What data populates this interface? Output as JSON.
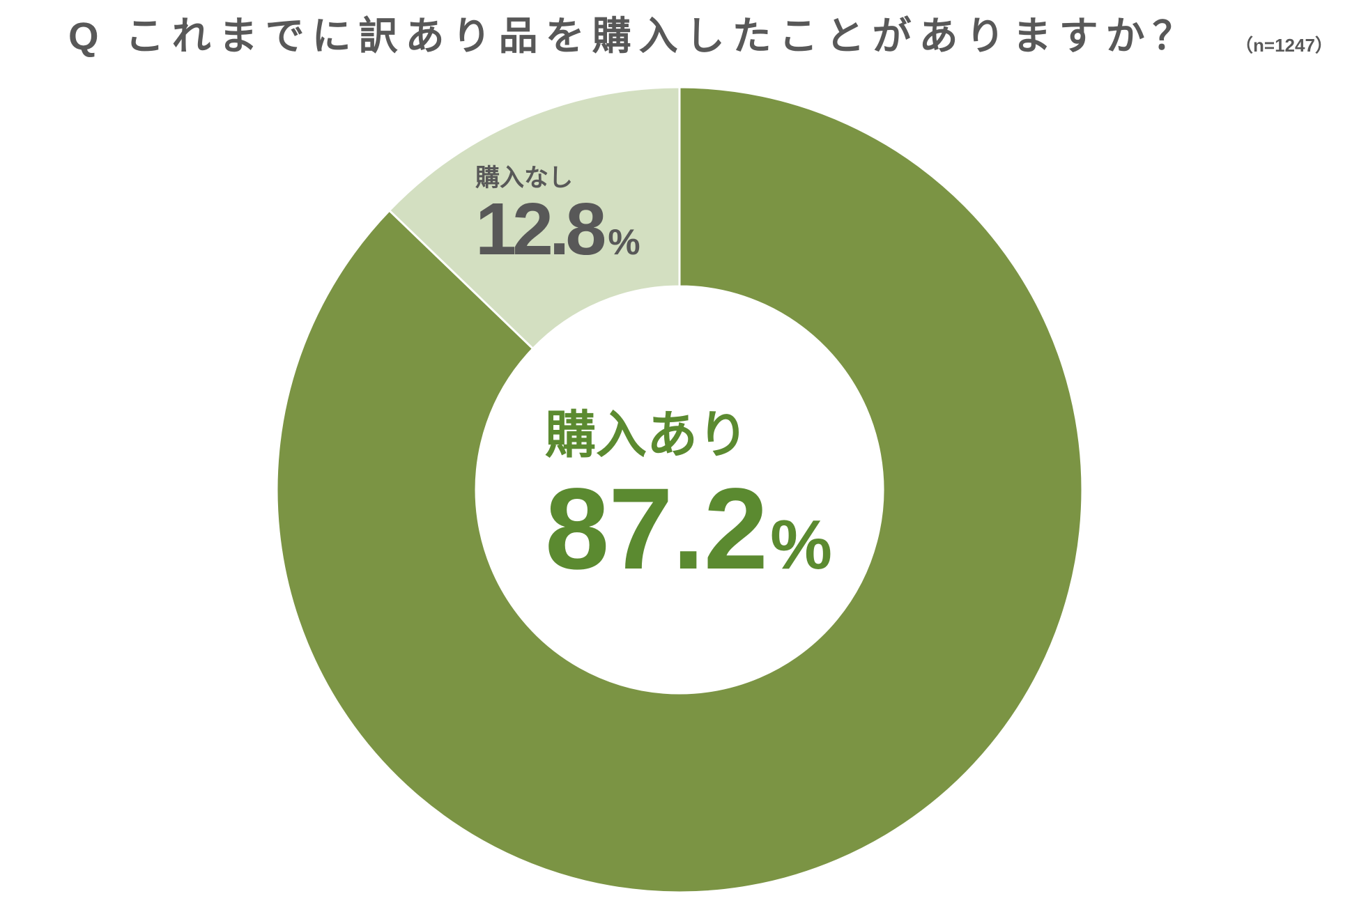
{
  "chart_data": {
    "type": "pie",
    "donut": true,
    "title_prefix": "Q",
    "title": "これまでに訳あり品を購入したことがありますか？",
    "subtitle": "（n=1247）",
    "categories": [
      "購入あり",
      "購入なし"
    ],
    "values": [
      87.2,
      12.8
    ],
    "unit": "%",
    "colors": [
      "#7b9444",
      "#d3dfc1"
    ],
    "label_colors": [
      "#5b8a30",
      "#585858"
    ],
    "title_color": "#585858"
  }
}
